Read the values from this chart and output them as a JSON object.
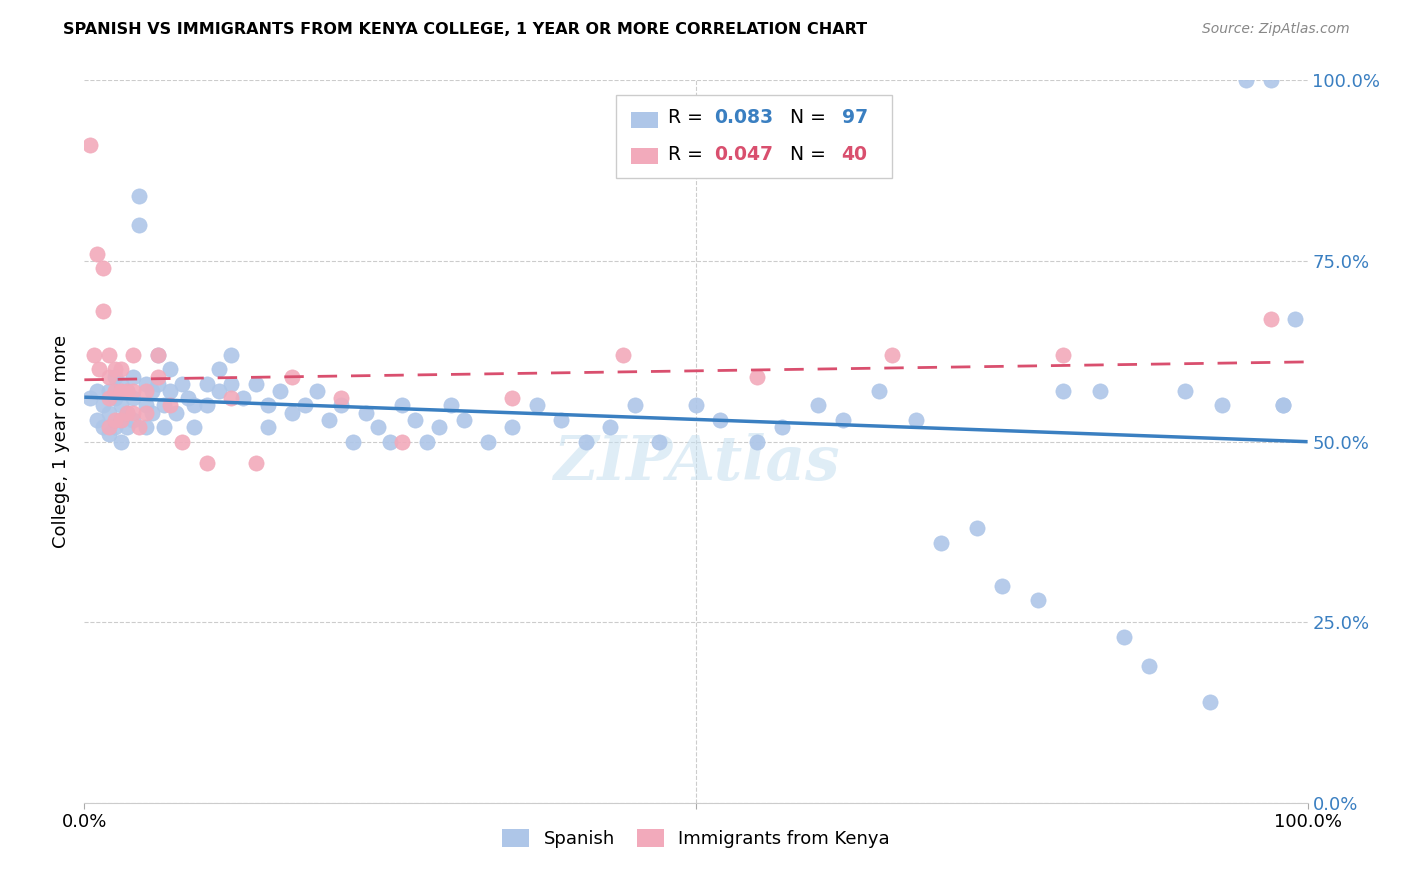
{
  "title": "SPANISH VS IMMIGRANTS FROM KENYA COLLEGE, 1 YEAR OR MORE CORRELATION CHART",
  "source": "Source: ZipAtlas.com",
  "ylabel": "College, 1 year or more",
  "watermark": "ZIPAtlas",
  "legend_label1": "Spanish",
  "legend_label2": "Immigrants from Kenya",
  "r1": 0.083,
  "n1": 97,
  "r2": 0.047,
  "n2": 40,
  "blue_color": "#aec6e8",
  "pink_color": "#f2aabb",
  "blue_line_color": "#3a7fc1",
  "pink_line_color": "#d94f6e",
  "right_axis_color": "#3a7fc1",
  "blue_scatter_x": [
    0.005,
    0.01,
    0.01,
    0.015,
    0.015,
    0.02,
    0.02,
    0.02,
    0.025,
    0.025,
    0.025,
    0.03,
    0.03,
    0.03,
    0.03,
    0.035,
    0.035,
    0.035,
    0.04,
    0.04,
    0.04,
    0.045,
    0.045,
    0.05,
    0.05,
    0.05,
    0.055,
    0.055,
    0.06,
    0.06,
    0.065,
    0.065,
    0.07,
    0.07,
    0.075,
    0.08,
    0.085,
    0.09,
    0.09,
    0.1,
    0.1,
    0.11,
    0.11,
    0.12,
    0.12,
    0.13,
    0.14,
    0.15,
    0.15,
    0.16,
    0.17,
    0.18,
    0.19,
    0.2,
    0.21,
    0.22,
    0.23,
    0.24,
    0.25,
    0.26,
    0.27,
    0.28,
    0.29,
    0.3,
    0.31,
    0.33,
    0.35,
    0.37,
    0.39,
    0.41,
    0.43,
    0.45,
    0.47,
    0.5,
    0.52,
    0.55,
    0.57,
    0.6,
    0.62,
    0.65,
    0.68,
    0.7,
    0.73,
    0.75,
    0.78,
    0.8,
    0.83,
    0.85,
    0.87,
    0.9,
    0.92,
    0.93,
    0.95,
    0.97,
    0.98,
    0.98,
    0.99
  ],
  "blue_scatter_y": [
    0.56,
    0.57,
    0.53,
    0.55,
    0.52,
    0.57,
    0.54,
    0.51,
    0.59,
    0.56,
    0.52,
    0.58,
    0.55,
    0.53,
    0.5,
    0.57,
    0.54,
    0.52,
    0.59,
    0.56,
    0.53,
    0.8,
    0.84,
    0.58,
    0.55,
    0.52,
    0.57,
    0.54,
    0.62,
    0.58,
    0.55,
    0.52,
    0.6,
    0.57,
    0.54,
    0.58,
    0.56,
    0.55,
    0.52,
    0.58,
    0.55,
    0.6,
    0.57,
    0.62,
    0.58,
    0.56,
    0.58,
    0.55,
    0.52,
    0.57,
    0.54,
    0.55,
    0.57,
    0.53,
    0.55,
    0.5,
    0.54,
    0.52,
    0.5,
    0.55,
    0.53,
    0.5,
    0.52,
    0.55,
    0.53,
    0.5,
    0.52,
    0.55,
    0.53,
    0.5,
    0.52,
    0.55,
    0.5,
    0.55,
    0.53,
    0.5,
    0.52,
    0.55,
    0.53,
    0.57,
    0.53,
    0.36,
    0.38,
    0.3,
    0.28,
    0.57,
    0.57,
    0.23,
    0.19,
    0.57,
    0.14,
    0.55,
    1.0,
    1.0,
    0.55,
    0.55,
    0.67
  ],
  "pink_scatter_x": [
    0.005,
    0.008,
    0.01,
    0.012,
    0.015,
    0.015,
    0.02,
    0.02,
    0.02,
    0.02,
    0.025,
    0.025,
    0.025,
    0.03,
    0.03,
    0.03,
    0.035,
    0.035,
    0.04,
    0.04,
    0.04,
    0.045,
    0.05,
    0.05,
    0.06,
    0.06,
    0.07,
    0.08,
    0.1,
    0.12,
    0.14,
    0.17,
    0.21,
    0.26,
    0.35,
    0.44,
    0.55,
    0.66,
    0.8,
    0.97
  ],
  "pink_scatter_y": [
    0.91,
    0.62,
    0.76,
    0.6,
    0.74,
    0.68,
    0.62,
    0.59,
    0.56,
    0.52,
    0.6,
    0.57,
    0.53,
    0.6,
    0.57,
    0.53,
    0.57,
    0.54,
    0.62,
    0.57,
    0.54,
    0.52,
    0.57,
    0.54,
    0.62,
    0.59,
    0.55,
    0.5,
    0.47,
    0.56,
    0.47,
    0.59,
    0.56,
    0.5,
    0.56,
    0.62,
    0.59,
    0.62,
    0.62,
    0.67
  ]
}
